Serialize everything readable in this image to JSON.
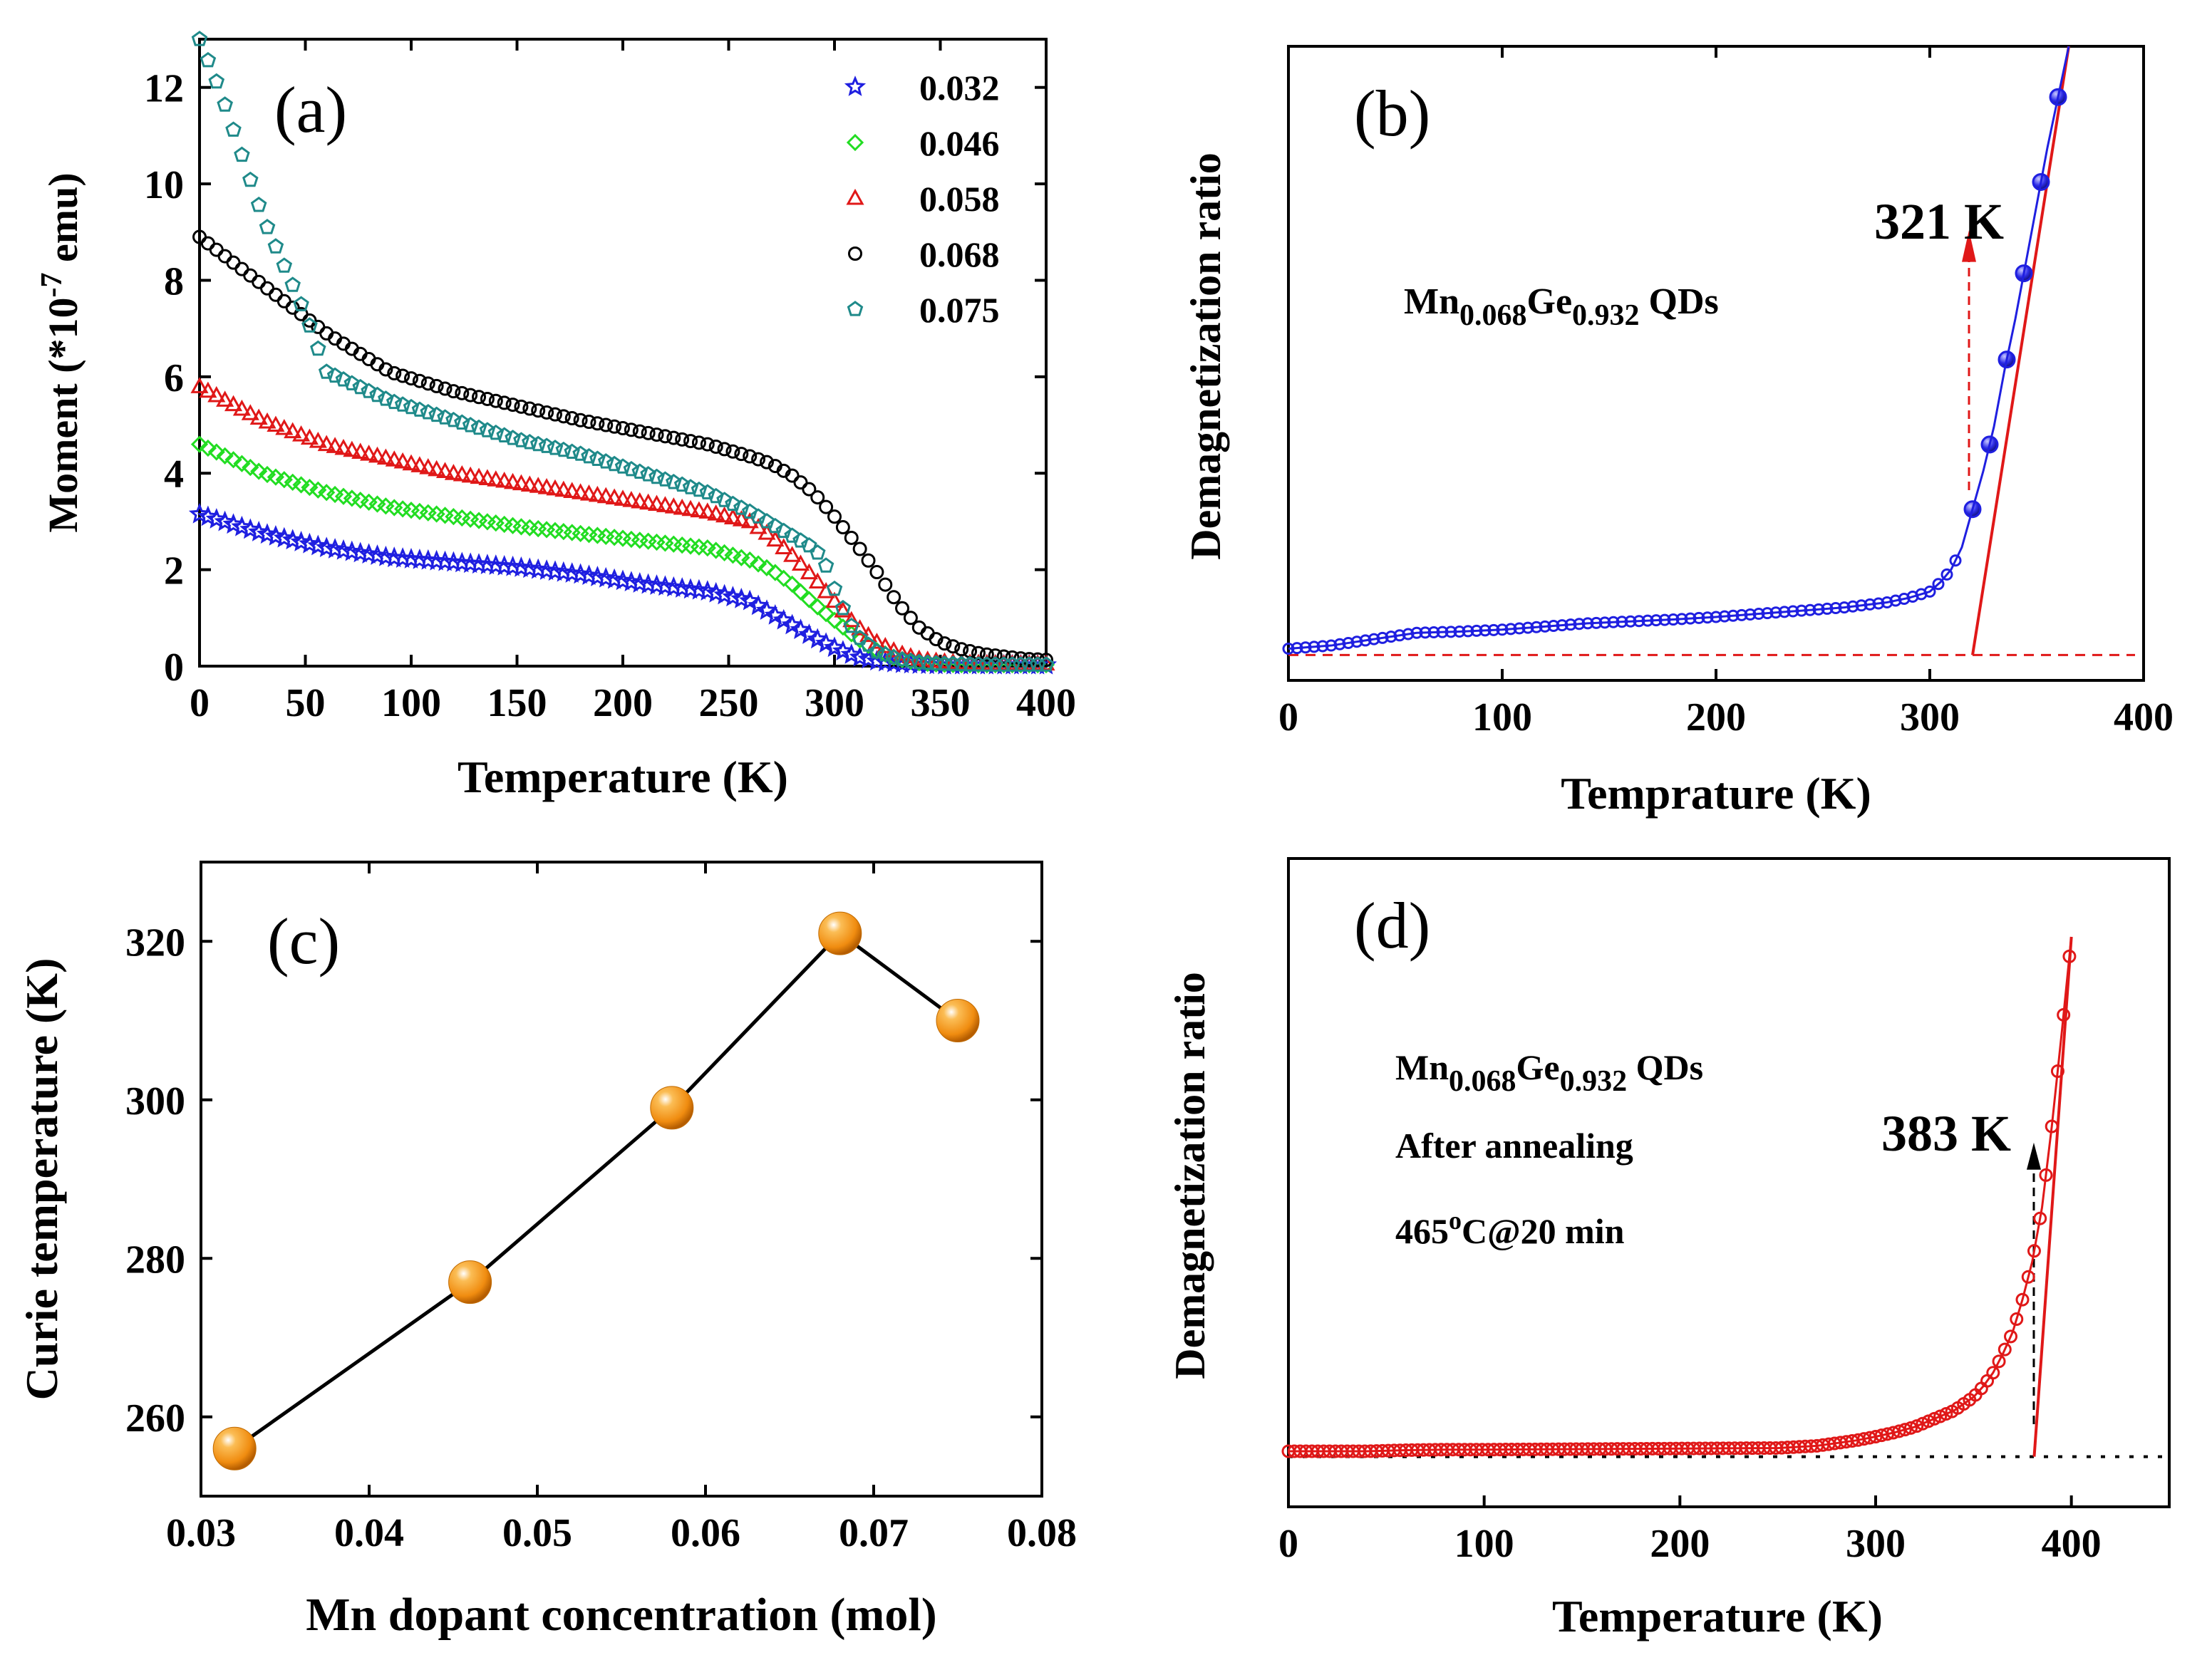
{
  "chart_data": [
    {
      "id": "a",
      "type": "scatter",
      "panel_label": "(a)",
      "xlabel": "Temperature (K)",
      "ylabel": "Moment (*10",
      "ylabel_exponent": "-7",
      "ylabel_suffix": " emu)",
      "xlim": [
        0,
        400
      ],
      "ylim": [
        0,
        13
      ],
      "xticks": [
        "0",
        "50",
        "100",
        "150",
        "200",
        "250",
        "300",
        "350",
        "400"
      ],
      "yticks": [
        "0",
        "2",
        "4",
        "6",
        "8",
        "10",
        "12"
      ],
      "legend_position": "top-right",
      "series": [
        {
          "name": "0.032",
          "marker": "star",
          "color": "#1f1fe0",
          "x": [
            0,
            30,
            60,
            90,
            120,
            150,
            180,
            210,
            240,
            260,
            270,
            280,
            290,
            300,
            310,
            320,
            330,
            340,
            350,
            360,
            370,
            380,
            390,
            400
          ],
          "y": [
            3.15,
            2.75,
            2.45,
            2.25,
            2.15,
            2.05,
            1.9,
            1.7,
            1.55,
            1.35,
            1.1,
            0.85,
            0.6,
            0.38,
            0.2,
            0.1,
            0.05,
            0.03,
            0.02,
            0.02,
            0.02,
            0.02,
            0.02,
            0.02
          ]
        },
        {
          "name": "0.046",
          "marker": "diamond",
          "color": "#22dd22",
          "x": [
            0,
            30,
            60,
            90,
            120,
            150,
            180,
            210,
            240,
            260,
            270,
            280,
            290,
            300,
            310,
            320,
            330,
            340,
            350,
            360,
            370,
            380,
            390,
            400
          ],
          "y": [
            4.6,
            4.0,
            3.6,
            3.3,
            3.1,
            2.9,
            2.75,
            2.6,
            2.45,
            2.2,
            2.0,
            1.7,
            1.3,
            0.95,
            0.6,
            0.32,
            0.15,
            0.07,
            0.04,
            0.03,
            0.03,
            0.03,
            0.03,
            0.03
          ]
        },
        {
          "name": "0.058",
          "marker": "triangle",
          "color": "#e01818",
          "x": [
            0,
            30,
            60,
            90,
            120,
            150,
            180,
            210,
            240,
            260,
            270,
            280,
            290,
            300,
            310,
            320,
            330,
            340,
            350,
            360,
            370,
            380,
            390,
            400
          ],
          "y": [
            5.8,
            5.1,
            4.6,
            4.3,
            4.0,
            3.8,
            3.6,
            3.4,
            3.2,
            3.0,
            2.7,
            2.3,
            1.85,
            1.35,
            0.85,
            0.5,
            0.28,
            0.15,
            0.1,
            0.07,
            0.06,
            0.05,
            0.05,
            0.05
          ]
        },
        {
          "name": "0.068",
          "marker": "circle",
          "color": "#000000",
          "x": [
            0,
            30,
            60,
            90,
            120,
            150,
            180,
            210,
            240,
            260,
            270,
            280,
            290,
            300,
            310,
            320,
            330,
            340,
            350,
            360,
            370,
            380,
            390,
            400
          ],
          "y": [
            8.9,
            7.9,
            6.9,
            6.1,
            5.7,
            5.4,
            5.1,
            4.85,
            4.6,
            4.35,
            4.2,
            3.95,
            3.6,
            3.1,
            2.55,
            1.95,
            1.3,
            0.8,
            0.5,
            0.35,
            0.25,
            0.2,
            0.15,
            0.13
          ]
        },
        {
          "name": "0.075",
          "marker": "pentagon",
          "color": "#1f8a8a",
          "x": [
            0,
            10,
            20,
            30,
            40,
            50,
            60,
            90,
            120,
            150,
            180,
            210,
            240,
            260,
            270,
            280,
            290,
            295,
            300,
            305,
            310,
            320,
            330,
            340,
            350,
            360,
            370,
            380,
            390,
            400
          ],
          "y": [
            13.0,
            11.9,
            10.6,
            9.3,
            8.3,
            7.3,
            6.1,
            5.5,
            5.1,
            4.7,
            4.4,
            4.0,
            3.6,
            3.2,
            2.95,
            2.7,
            2.45,
            2.2,
            1.6,
            1.1,
            0.65,
            0.3,
            0.15,
            0.08,
            0.05,
            0.04,
            0.03,
            0.03,
            0.03,
            0.03
          ]
        }
      ]
    },
    {
      "id": "b",
      "type": "scatter",
      "panel_label": "(b)",
      "xlabel": "Temprature (K)",
      "ylabel": "Demagnetization ratio",
      "xlim": [
        0,
        400
      ],
      "ylim": [
        0,
        100
      ],
      "xticks": [
        "0",
        "100",
        "200",
        "300",
        "400"
      ],
      "annotation_main": "Mn",
      "annotation_sub1": "0.068",
      "annotation_mid": "Ge",
      "annotation_sub2": "0.932",
      "annotation_tail": " QDs",
      "tc_label": "321 K",
      "tc_value": 321,
      "baseline_y": 4,
      "fit_line": {
        "x": [
          320,
          365
        ],
        "y": [
          4,
          100
        ]
      },
      "series": [
        {
          "name": "Mn0.068Ge0.932 QDs",
          "marker": "circle",
          "color": "#1f1fe0",
          "x": [
            0,
            20,
            40,
            60,
            80,
            100,
            120,
            140,
            160,
            180,
            200,
            220,
            240,
            260,
            280,
            290,
            300,
            305,
            310,
            315,
            320,
            325,
            330,
            335,
            340,
            345,
            350,
            355,
            360,
            365
          ],
          "y": [
            5,
            5.5,
            6.5,
            7.5,
            7.7,
            8,
            8.5,
            9,
            9.3,
            9.6,
            10,
            10.5,
            11,
            11.5,
            12.3,
            13,
            14,
            15.5,
            17.5,
            21,
            27,
            33,
            40,
            49,
            57,
            66,
            75,
            84,
            92,
            100
          ]
        }
      ]
    },
    {
      "id": "c",
      "type": "line",
      "panel_label": "(c)",
      "xlabel": "Mn dopant concentration (mol)",
      "ylabel": "Curie temperature (K)",
      "xlim": [
        0.03,
        0.08
      ],
      "ylim": [
        250,
        330
      ],
      "xticks": [
        "0.03",
        "0.04",
        "0.05",
        "0.06",
        "0.07",
        "0.08"
      ],
      "yticks": [
        "260",
        "280",
        "300",
        "320"
      ],
      "series": [
        {
          "name": "Curie temperature",
          "marker": "sphere",
          "color": "#f08c10",
          "x": [
            0.032,
            0.046,
            0.058,
            0.068,
            0.075
          ],
          "y": [
            256,
            277,
            299,
            321,
            310
          ]
        }
      ]
    },
    {
      "id": "d",
      "type": "scatter",
      "panel_label": "(d)",
      "xlabel": "Temperature (K)",
      "ylabel": "Demagnetization ratio",
      "xlim": [
        0,
        450
      ],
      "ylim": [
        0,
        100
      ],
      "xticks": [
        "0",
        "100",
        "200",
        "300",
        "400"
      ],
      "annotation_main": "Mn",
      "annotation_sub1": "0.068",
      "annotation_mid": "Ge",
      "annotation_sub2": "0.932",
      "annotation_tail": " QDs",
      "annotation_line2": "After annealing",
      "annotation_line3_prefix": "465",
      "annotation_line3_sup": "o",
      "annotation_line3_suffix": "C@20 min",
      "tc_label": "383 K",
      "tc_value": 383,
      "baseline_y": 4,
      "fit_line": {
        "x": [
          381,
          400
        ],
        "y": [
          4,
          100
        ]
      },
      "series": [
        {
          "name": "After annealing",
          "marker": "circle",
          "color": "#e01818",
          "x": [
            0,
            20,
            40,
            60,
            80,
            100,
            150,
            200,
            250,
            270,
            290,
            300,
            310,
            320,
            330,
            340,
            350,
            355,
            360,
            365,
            370,
            375,
            380,
            385,
            390,
            395,
            400
          ],
          "y": [
            5,
            5,
            5,
            5.2,
            5.3,
            5.3,
            5.4,
            5.5,
            5.6,
            6,
            7,
            7.7,
            8.5,
            9.5,
            11,
            12.5,
            15,
            17,
            19.5,
            23,
            27,
            33,
            40,
            50,
            65,
            82,
            100
          ]
        }
      ]
    }
  ]
}
